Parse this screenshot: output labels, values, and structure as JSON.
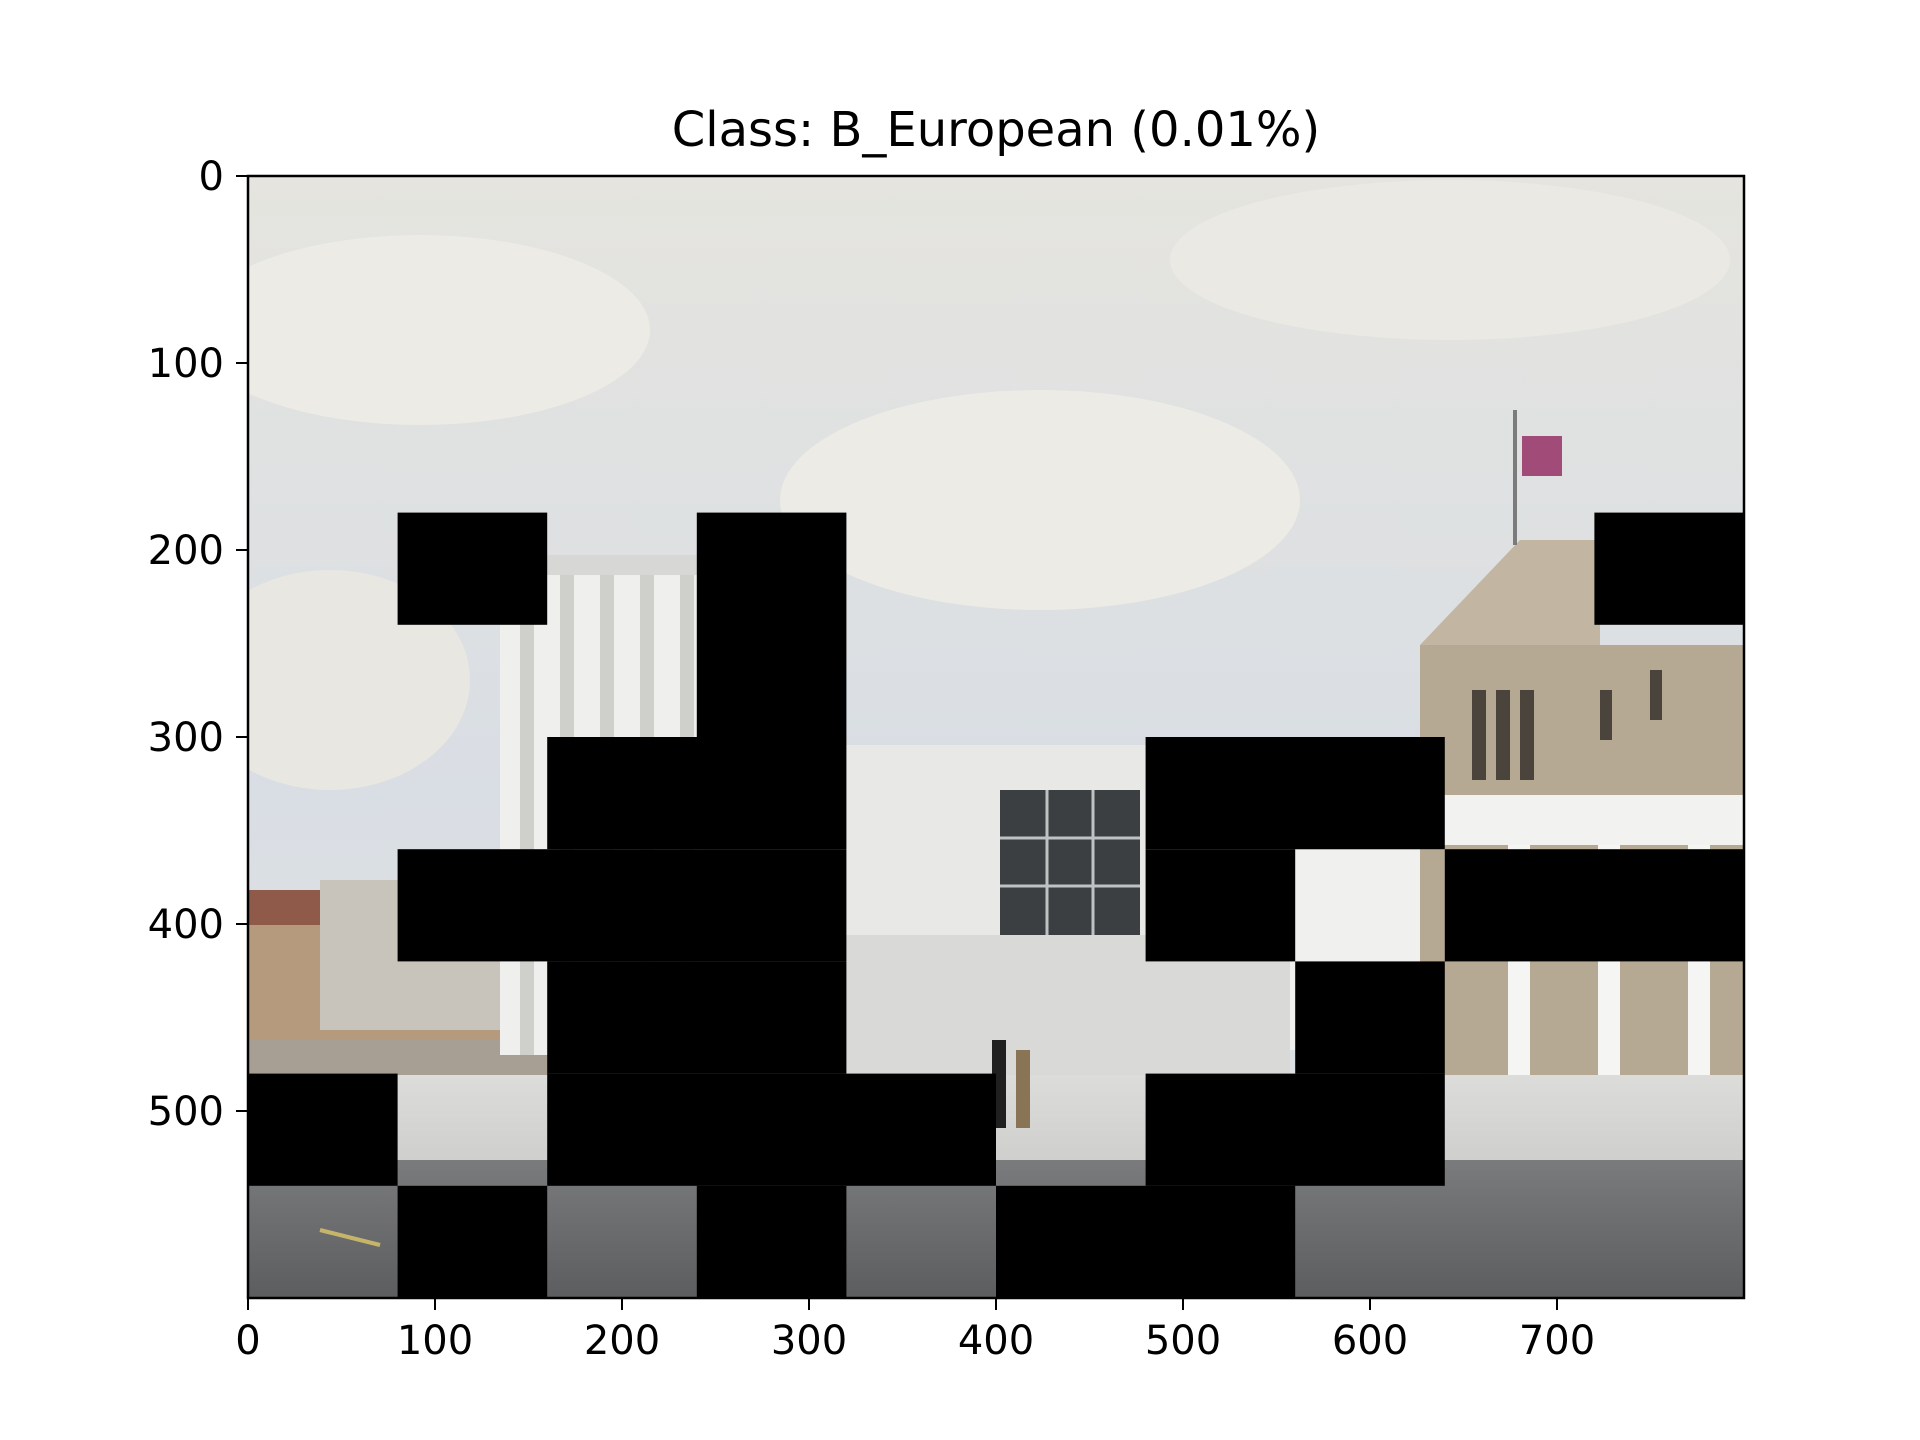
{
  "chart_data": {
    "type": "image",
    "title": "Class: B_European (0.01%)",
    "xlabel": "",
    "ylabel": "",
    "image_width": 800,
    "image_height": 600,
    "xlim": [
      0,
      800
    ],
    "ylim": [
      600,
      0
    ],
    "x_ticks": [
      0,
      100,
      200,
      300,
      400,
      500,
      600,
      700
    ],
    "y_ticks": [
      0,
      100,
      200,
      300,
      400,
      500
    ],
    "grid": false,
    "mask_cell": {
      "width": 80,
      "height": 60
    },
    "mask_color": "#000000",
    "masked_regions": [
      [
        80,
        180,
        80,
        60
      ],
      [
        240,
        180,
        80,
        120
      ],
      [
        720,
        180,
        80,
        60
      ],
      [
        160,
        300,
        160,
        60
      ],
      [
        480,
        300,
        160,
        60
      ],
      [
        80,
        360,
        240,
        60
      ],
      [
        480,
        360,
        80,
        60
      ],
      [
        640,
        360,
        160,
        60
      ],
      [
        160,
        420,
        160,
        60
      ],
      [
        560,
        420,
        80,
        60
      ],
      [
        0,
        480,
        80,
        60
      ],
      [
        160,
        480,
        240,
        60
      ],
      [
        480,
        480,
        160,
        60
      ],
      [
        80,
        540,
        80,
        60
      ],
      [
        240,
        540,
        80,
        60
      ],
      [
        400,
        540,
        160,
        60
      ]
    ],
    "photo_description_colors": {
      "sky": "#dfe2e6",
      "building": "#e6e6e4",
      "road": "#6c6c6c"
    }
  }
}
